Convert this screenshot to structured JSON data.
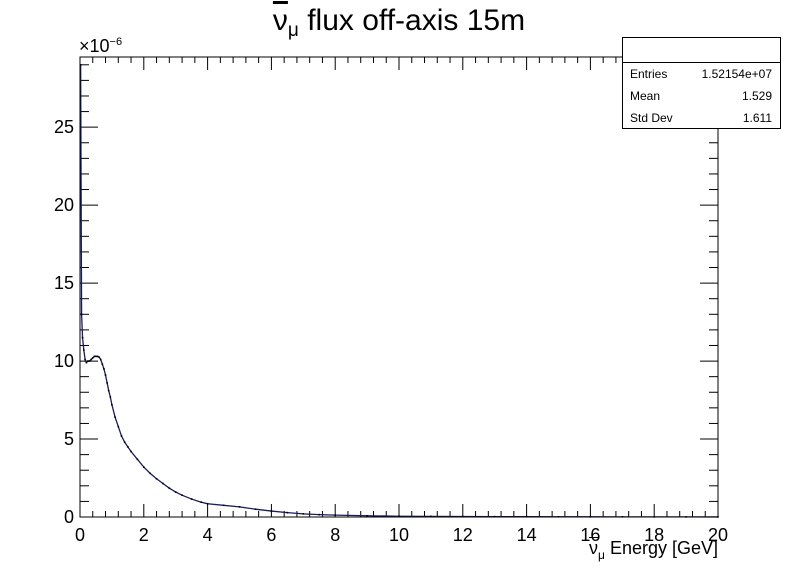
{
  "chart_data": {
    "type": "histogram",
    "title_symbol": "ν",
    "title_sub": "μ",
    "title_rest": " flux off-axis 15m",
    "xlabel_symbol": "ν",
    "xlabel_sub": "μ",
    "xlabel_rest": " Energy [GeV]",
    "y_multiplier_base": "×10",
    "y_multiplier_exp": "−6",
    "xlim": [
      0,
      20
    ],
    "ylim": [
      0,
      29.5
    ],
    "x_ticks": [
      0,
      2,
      4,
      6,
      8,
      10,
      12,
      14,
      16,
      18,
      20
    ],
    "y_ticks": [
      0,
      5,
      10,
      15,
      20,
      25
    ],
    "curve": {
      "x": [
        0.02,
        0.05,
        0.08,
        0.12,
        0.16,
        0.2,
        0.25,
        0.3,
        0.35,
        0.4,
        0.45,
        0.5,
        0.55,
        0.6,
        0.65,
        0.7,
        0.75,
        0.8,
        0.85,
        0.9,
        0.95,
        1.0,
        1.1,
        1.2,
        1.3,
        1.4,
        1.5,
        1.6,
        1.8,
        2.0,
        2.2,
        2.4,
        2.6,
        2.8,
        3.0,
        3.2,
        3.5,
        3.8,
        4.0,
        4.5,
        5.0,
        5.5,
        6.0,
        6.5,
        7.0,
        7.5,
        8.0,
        9.0,
        10.0,
        11.0,
        12.0,
        13.0,
        14.0,
        15.0,
        16.0,
        17.0,
        18.0,
        19.0,
        20.0
      ],
      "y": [
        29.0,
        13.0,
        11.5,
        10.7,
        10.1,
        9.9,
        10.0,
        10.0,
        10.1,
        10.2,
        10.3,
        10.3,
        10.3,
        10.25,
        10.1,
        9.8,
        9.5,
        9.1,
        8.6,
        8.1,
        7.7,
        7.2,
        6.4,
        5.8,
        5.2,
        4.8,
        4.5,
        4.2,
        3.7,
        3.2,
        2.8,
        2.45,
        2.15,
        1.85,
        1.6,
        1.4,
        1.15,
        0.95,
        0.85,
        0.75,
        0.65,
        0.5,
        0.38,
        0.28,
        0.2,
        0.15,
        0.12,
        0.08,
        0.05,
        0.04,
        0.03,
        0.025,
        0.02,
        0.015,
        0.012,
        0.01,
        0.008,
        0.006,
        0.005
      ]
    }
  },
  "stats": {
    "rows": [
      {
        "label": "Entries",
        "value": "1.52154e+07"
      },
      {
        "label": "Mean",
        "value": "1.529"
      },
      {
        "label": "Std Dev",
        "value": "1.611"
      }
    ]
  }
}
